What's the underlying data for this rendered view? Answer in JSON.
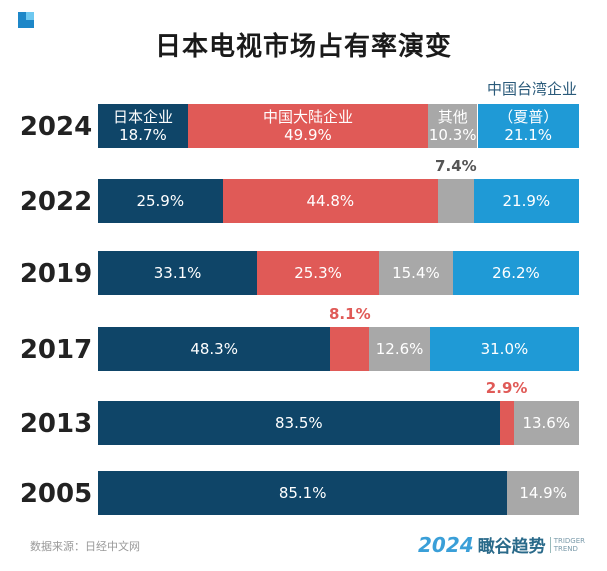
{
  "title": "日本电视市场占有率演变",
  "taiwan_label": "中国台湾企业",
  "source": "数据来源：日经中文网",
  "brand": {
    "year": "2024",
    "name": "瞰谷趋势",
    "en": "TRIDGER\nTREND"
  },
  "colors": {
    "japan": "#0f4568",
    "china": "#e05a57",
    "other": "#a8a8a8",
    "taiwan": "#1f9ad6"
  },
  "chart_data": {
    "type": "bar",
    "orientation": "horizontal",
    "stacked": true,
    "categories": [
      "2024",
      "2022",
      "2019",
      "2017",
      "2013",
      "2005"
    ],
    "series": [
      {
        "key": "japan",
        "name": "日本企业",
        "values": [
          18.7,
          25.9,
          33.1,
          48.3,
          83.5,
          85.1
        ]
      },
      {
        "key": "china",
        "name": "中国大陆企业",
        "values": [
          49.9,
          44.8,
          25.3,
          8.1,
          2.9,
          null
        ]
      },
      {
        "key": "other",
        "name": "其他",
        "values": [
          10.3,
          7.4,
          15.4,
          12.6,
          13.6,
          14.9
        ]
      },
      {
        "key": "taiwan",
        "name": "（夏普）",
        "values": [
          21.1,
          21.9,
          26.2,
          31.0,
          null,
          null
        ]
      }
    ],
    "labels": [
      [
        "18.7%",
        "49.9%",
        "10.3%",
        "21.1%"
      ],
      [
        "25.9%",
        "44.8%",
        "7.4%",
        "21.9%"
      ],
      [
        "33.1%",
        "25.3%",
        "15.4%",
        "26.2%"
      ],
      [
        "48.3%",
        "8.1%",
        "12.6%",
        "31.0%"
      ],
      [
        "83.5%",
        "2.9%",
        "13.6%",
        ""
      ],
      [
        "85.1%",
        "",
        "14.9%",
        ""
      ]
    ],
    "xlim": [
      0,
      100
    ]
  }
}
